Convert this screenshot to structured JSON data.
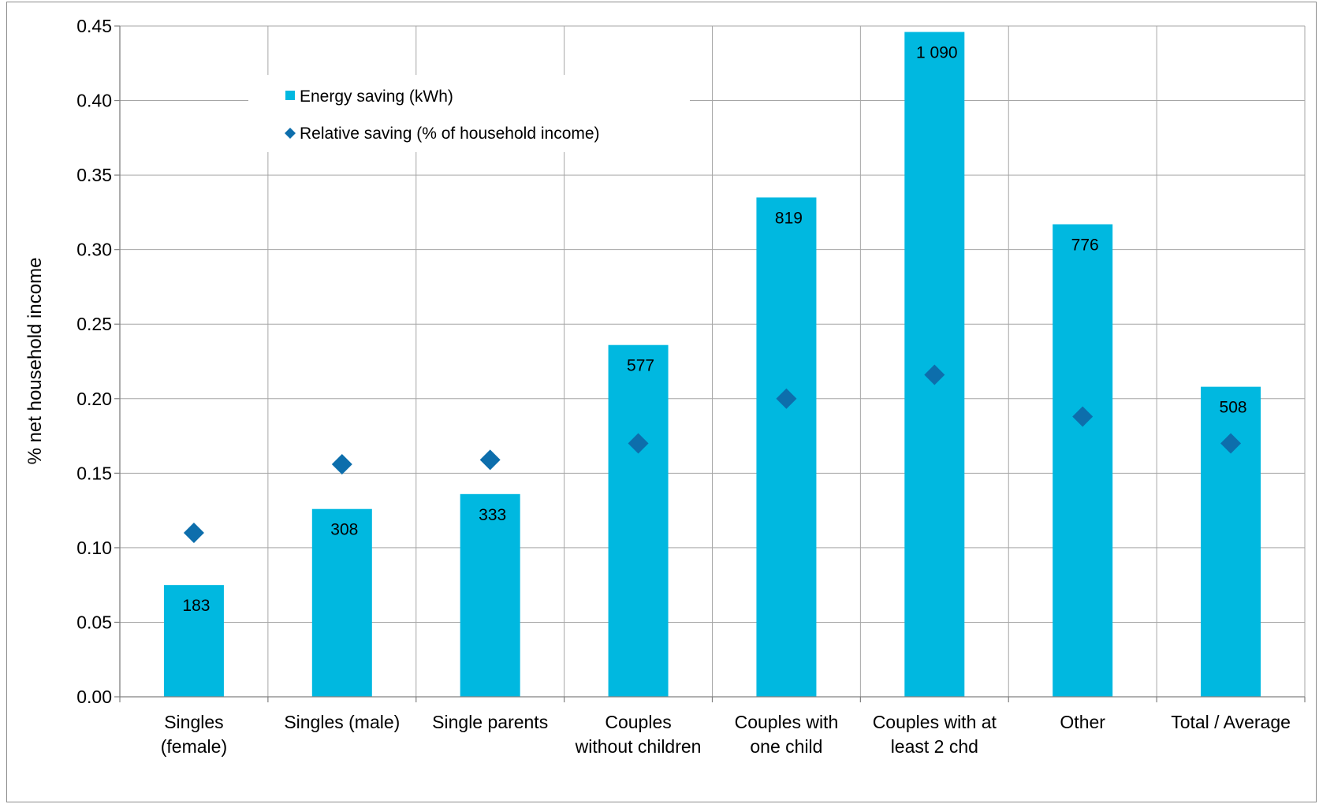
{
  "chart_data": {
    "type": "bar",
    "title": "",
    "xlabel": "",
    "ylabel": "% net household income",
    "ylim": [
      0,
      0.45
    ],
    "yticks": [
      "0.00",
      "0.05",
      "0.10",
      "0.15",
      "0.20",
      "0.25",
      "0.30",
      "0.35",
      "0.40",
      "0.45"
    ],
    "grid": true,
    "legend_position": "top-left",
    "categories": [
      [
        "Singles",
        "(female)"
      ],
      [
        "Singles (male)"
      ],
      [
        "Single parents"
      ],
      [
        "Couples",
        "without children"
      ],
      [
        "Couples with",
        "one child"
      ],
      [
        "Couples with at",
        "least 2 chd"
      ],
      [
        "Other"
      ],
      [
        "Total / Average"
      ]
    ],
    "series": [
      {
        "name": "Energy saving (kWh)",
        "kind": "bar",
        "color": "#00b8e0",
        "bar_heights_pct": [
          0.075,
          0.126,
          0.136,
          0.236,
          0.335,
          0.446,
          0.317,
          0.208
        ],
        "labels": [
          "183",
          "308",
          "333",
          "577",
          "819",
          "1 090",
          "776",
          "508"
        ]
      },
      {
        "name": "Relative saving (% of household income)",
        "kind": "marker",
        "color": "#0d6eac",
        "values": [
          0.11,
          0.156,
          0.159,
          0.17,
          0.2,
          0.216,
          0.188,
          0.17
        ]
      }
    ]
  }
}
